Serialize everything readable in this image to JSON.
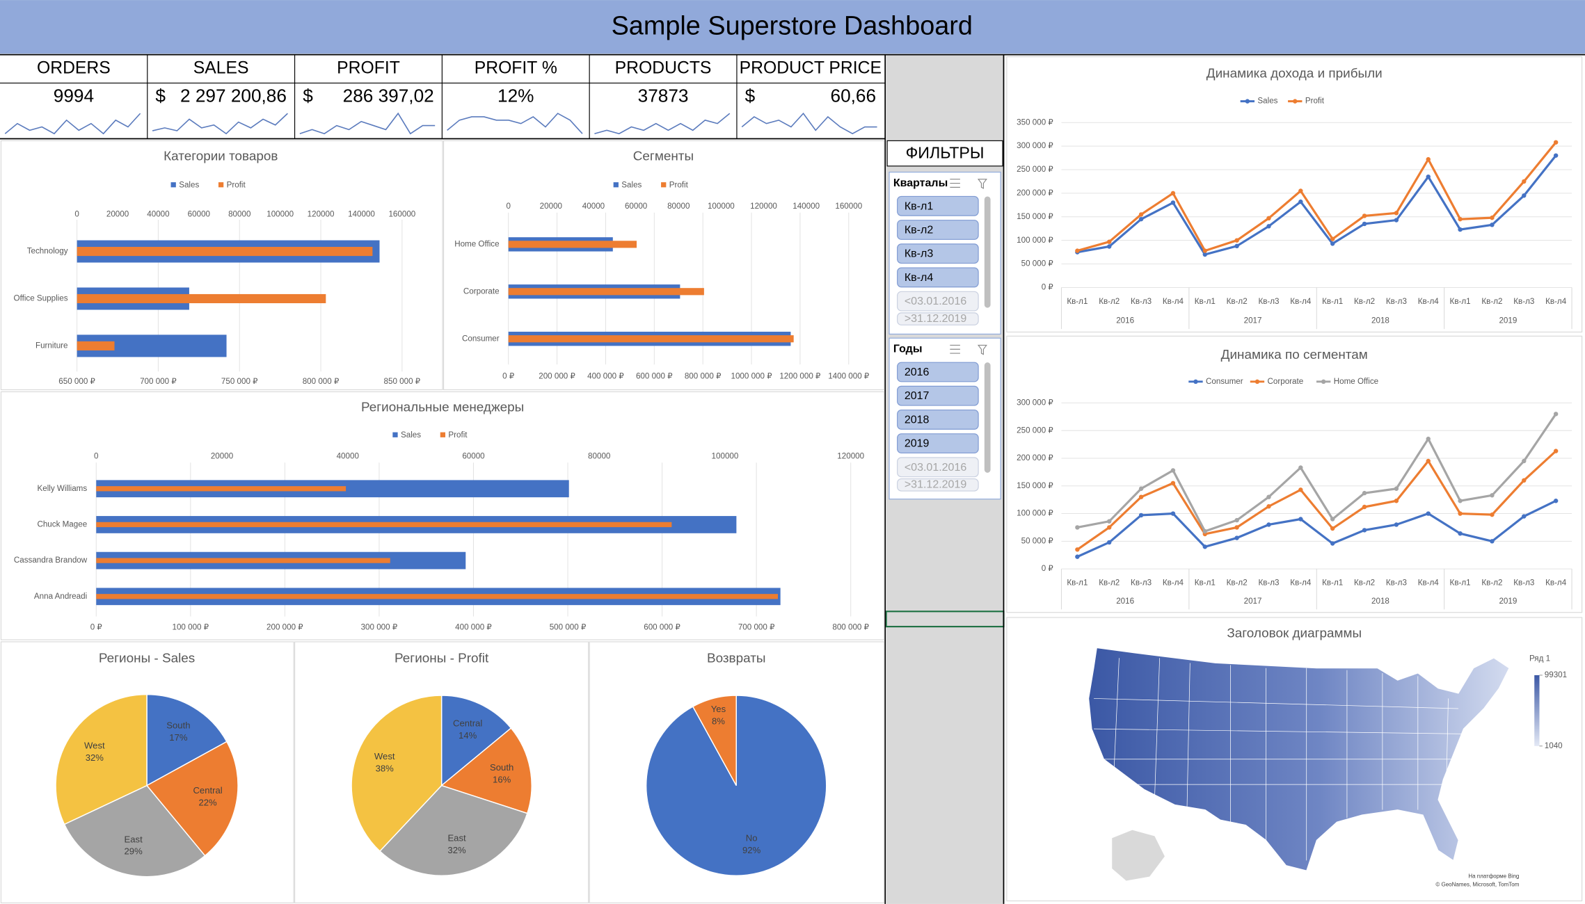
{
  "title": "Sample Superstore Dashboard",
  "kpis": [
    {
      "label": "ORDERS",
      "value": "9994",
      "sparkline": [
        2,
        5,
        3,
        4,
        2,
        6,
        3,
        5,
        2,
        6,
        4,
        8
      ]
    },
    {
      "label": "SALES",
      "currency": "$",
      "value": "2 297 200,86",
      "sparkline": [
        2,
        3,
        2,
        6,
        3,
        4,
        1,
        5,
        3,
        6,
        4,
        8
      ]
    },
    {
      "label": "PROFIT",
      "currency": "$",
      "value": "286 397,02",
      "sparkline": [
        3,
        4,
        3,
        5,
        4,
        6,
        5,
        4,
        8,
        3,
        5,
        5
      ]
    },
    {
      "label": "PROFIT %",
      "value": "12%",
      "sparkline": [
        3,
        6,
        7,
        7,
        6,
        6,
        5,
        7,
        4,
        8,
        6,
        2
      ]
    },
    {
      "label": "PRODUCTS",
      "value": "37873",
      "sparkline": [
        2,
        3,
        2,
        4,
        3,
        5,
        3,
        5,
        3,
        6,
        5,
        8
      ]
    },
    {
      "label": "PRODUCT PRICE",
      "currency": "$",
      "value": "60,66",
      "sparkline": [
        4,
        7,
        5,
        6,
        4,
        8,
        3,
        7,
        4,
        2,
        4,
        4
      ]
    }
  ],
  "filters": {
    "title": "ФИЛЬТРЫ",
    "slicers": [
      {
        "title": "Кварталы",
        "items": [
          "Кв-л1",
          "Кв-л2",
          "Кв-л3",
          "Кв-л4"
        ],
        "extra_items": [
          "<03.01.2016",
          ">31.12.2019"
        ]
      },
      {
        "title": "Годы",
        "items": [
          "2016",
          "2017",
          "2018",
          "2019"
        ],
        "extra_items": [
          "<03.01.2016",
          ">31.12.2019"
        ]
      }
    ]
  },
  "chart_data": [
    {
      "type": "hbar",
      "title": "Категории товаров",
      "categories": [
        "Technology",
        "Office Supplies",
        "Furniture"
      ],
      "series": [
        {
          "name": "Sales",
          "color": "#4472c4",
          "values": [
            836154,
            719047,
            741999
          ]
        },
        {
          "name": "Profit",
          "color": "#ed7d31",
          "values": [
            145455,
            122491,
            18451
          ],
          "axis": "x2"
        }
      ],
      "xlim": [
        650000,
        850000
      ],
      "xticks": [
        {
          "value": 650000,
          "label": "650 000 ₽"
        },
        {
          "value": 700000,
          "label": "700 000 ₽"
        },
        {
          "value": 750000,
          "label": "750 000 ₽"
        },
        {
          "value": 800000,
          "label": "800 000 ₽"
        },
        {
          "value": 850000,
          "label": "850 000 ₽"
        }
      ],
      "x2lim": [
        0,
        160000
      ],
      "x2ticks": [
        0,
        20000,
        40000,
        60000,
        80000,
        100000,
        120000,
        140000,
        160000
      ],
      "grid": true,
      "legend": "top"
    },
    {
      "type": "hbar",
      "title": "Сегменты",
      "categories": [
        "Home Office",
        "Corporate",
        "Consumer"
      ],
      "series": [
        {
          "name": "Sales",
          "color": "#4472c4",
          "values": [
            429653,
            706146,
            1161401
          ]
        },
        {
          "name": "Profit",
          "color": "#ed7d31",
          "values": [
            60299,
            91979,
            134119
          ],
          "axis": "x2"
        }
      ],
      "xlim": [
        0,
        1400000
      ],
      "xticks": [
        {
          "value": 0,
          "label": "0 ₽"
        },
        {
          "value": 200000,
          "label": "200 000 ₽"
        },
        {
          "value": 400000,
          "label": "400 000 ₽"
        },
        {
          "value": 600000,
          "label": "600 000 ₽"
        },
        {
          "value": 800000,
          "label": "800 000 ₽"
        },
        {
          "value": 1000000,
          "label": "1000 000 ₽"
        },
        {
          "value": 1200000,
          "label": "1200 000 ₽"
        },
        {
          "value": 1400000,
          "label": "1400 000 ₽"
        }
      ],
      "x2lim": [
        0,
        160000
      ],
      "x2ticks": [
        0,
        20000,
        40000,
        60000,
        80000,
        100000,
        120000,
        140000,
        160000
      ],
      "grid": true,
      "legend": "top"
    },
    {
      "type": "hbar",
      "title": "Региональные менеджеры",
      "categories": [
        "Kelly Williams",
        "Chuck Magee",
        "Cassandra Brandow",
        "Anna Andreadi"
      ],
      "series": [
        {
          "name": "Sales",
          "color": "#4472c4",
          "values": [
            501240,
            678781,
            391722,
            725458
          ]
        },
        {
          "name": "Profit",
          "color": "#ed7d31",
          "values": [
            39706,
            91523,
            46749,
            108418
          ],
          "axis": "x2"
        }
      ],
      "xlim": [
        0,
        800000
      ],
      "xticks": [
        {
          "value": 0,
          "label": "0 ₽"
        },
        {
          "value": 100000,
          "label": "100 000 ₽"
        },
        {
          "value": 200000,
          "label": "200 000 ₽"
        },
        {
          "value": 300000,
          "label": "300 000 ₽"
        },
        {
          "value": 400000,
          "label": "400 000 ₽"
        },
        {
          "value": 500000,
          "label": "500 000 ₽"
        },
        {
          "value": 600000,
          "label": "600 000 ₽"
        },
        {
          "value": 700000,
          "label": "700 000 ₽"
        },
        {
          "value": 800000,
          "label": "800 000 ₽"
        }
      ],
      "x2lim": [
        0,
        120000
      ],
      "x2ticks": [
        0,
        20000,
        40000,
        60000,
        80000,
        100000,
        120000
      ],
      "grid": true,
      "legend": "top"
    },
    {
      "type": "pie",
      "title": "Регионы - Sales",
      "categories": [
        "South",
        "Central",
        "East",
        "West"
      ],
      "values": [
        17,
        22,
        29,
        32
      ],
      "value_labels": [
        "17%",
        "22%",
        "29%",
        "32%"
      ],
      "colors": [
        "#4472c4",
        "#ed7d31",
        "#a5a5a5",
        "#f4c242"
      ]
    },
    {
      "type": "pie",
      "title": "Регионы - Profit",
      "categories": [
        "Central",
        "South",
        "East",
        "West"
      ],
      "values": [
        14,
        16,
        32,
        38
      ],
      "value_labels": [
        "14%",
        "16%",
        "32%",
        "38%"
      ],
      "colors": [
        "#4472c4",
        "#ed7d31",
        "#a5a5a5",
        "#f4c242"
      ]
    },
    {
      "type": "pie",
      "title": "Возвраты",
      "categories": [
        "No",
        "Yes"
      ],
      "values": [
        92,
        8
      ],
      "value_labels": [
        "92%",
        "8%"
      ],
      "colors": [
        "#4472c4",
        "#ed7d31"
      ]
    },
    {
      "type": "line",
      "title": "Динамика дохода и прибыли",
      "categories": [
        "Кв-л1",
        "Кв-л2",
        "Кв-л3",
        "Кв-л4",
        "Кв-л1",
        "Кв-л2",
        "Кв-л3",
        "Кв-л4",
        "Кв-л1",
        "Кв-л2",
        "Кв-л3",
        "Кв-л4",
        "Кв-л1",
        "Кв-л2",
        "Кв-л3",
        "Кв-л4"
      ],
      "category_groups": [
        "2016",
        "2017",
        "2018",
        "2019"
      ],
      "series": [
        {
          "name": "Sales",
          "color": "#4472c4",
          "values": [
            75000,
            87000,
            145000,
            180000,
            70000,
            88000,
            130000,
            182000,
            93000,
            135000,
            143000,
            235000,
            123000,
            133000,
            195000,
            280000
          ]
        },
        {
          "name": "Profit",
          "color": "#ed7d31",
          "values": [
            78000,
            97000,
            155000,
            200000,
            78000,
            100000,
            147000,
            205000,
            103000,
            152000,
            158000,
            272000,
            145000,
            148000,
            225000,
            308000
          ]
        }
      ],
      "ylim": [
        0,
        350000
      ],
      "yticks": [
        {
          "value": 0,
          "label": "0 ₽"
        },
        {
          "value": 50000,
          "label": "50 000 ₽"
        },
        {
          "value": 100000,
          "label": "100 000 ₽"
        },
        {
          "value": 150000,
          "label": "150 000 ₽"
        },
        {
          "value": 200000,
          "label": "200 000 ₽"
        },
        {
          "value": 250000,
          "label": "250 000 ₽"
        },
        {
          "value": 300000,
          "label": "300 000 ₽"
        },
        {
          "value": 350000,
          "label": "350 000 ₽"
        }
      ],
      "grid": true,
      "legend": "top"
    },
    {
      "type": "line",
      "title": "Динамика по сегментам",
      "categories": [
        "Кв-л1",
        "Кв-л2",
        "Кв-л3",
        "Кв-л4",
        "Кв-л1",
        "Кв-л2",
        "Кв-л3",
        "Кв-л4",
        "Кв-л1",
        "Кв-л2",
        "Кв-л3",
        "Кв-л4",
        "Кв-л1",
        "Кв-л2",
        "Кв-л3",
        "Кв-л4"
      ],
      "category_groups": [
        "2016",
        "2017",
        "2018",
        "2019"
      ],
      "series": [
        {
          "name": "Consumer",
          "color": "#4472c4",
          "values": [
            22000,
            48000,
            97000,
            100000,
            40000,
            56000,
            80000,
            90000,
            46000,
            70000,
            80000,
            100000,
            64000,
            50000,
            95000,
            123000
          ]
        },
        {
          "name": "Corporate",
          "color": "#ed7d31",
          "values": [
            35000,
            75000,
            130000,
            155000,
            63000,
            75000,
            113000,
            143000,
            73000,
            112000,
            123000,
            195000,
            100000,
            98000,
            160000,
            213000
          ]
        },
        {
          "name": "Home Office",
          "color": "#a5a5a5",
          "values": [
            75000,
            86000,
            145000,
            178000,
            68000,
            88000,
            130000,
            183000,
            90000,
            137000,
            145000,
            235000,
            123000,
            133000,
            195000,
            280000
          ]
        }
      ],
      "ylim": [
        0,
        300000
      ],
      "yticks": [
        {
          "value": 0,
          "label": "0 ₽"
        },
        {
          "value": 50000,
          "label": "50 000 ₽"
        },
        {
          "value": 100000,
          "label": "100 000 ₽"
        },
        {
          "value": 150000,
          "label": "150 000 ₽"
        },
        {
          "value": 200000,
          "label": "200 000 ₽"
        },
        {
          "value": 250000,
          "label": "250 000 ₽"
        },
        {
          "value": 300000,
          "label": "300 000 ₽"
        }
      ],
      "grid": true,
      "legend": "top"
    }
  ],
  "map": {
    "title": "Заголовок диаграммы",
    "legend_title": "Ряд 1",
    "scale_ticks": [
      99301,
      1040
    ],
    "attribution": [
      "На платформе Bing",
      "© GeoNames, Microsoft, TomTom"
    ]
  }
}
